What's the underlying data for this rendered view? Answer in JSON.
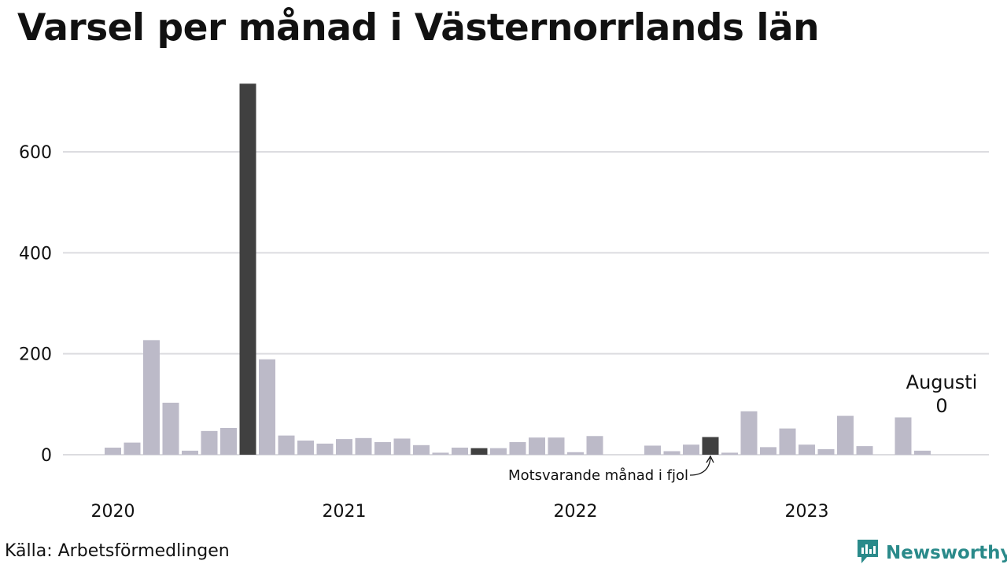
{
  "title": "Varsel per månad i Västernorrlands län",
  "source": "Källa: Arbetsförmedlingen",
  "brand": {
    "name": "Newsworthy",
    "icon": "newsworthy-logo-icon",
    "color": "#2a8a8a"
  },
  "colors": {
    "bar": "#bcbac8",
    "highlight": "#404040",
    "grid": "#dcdce0"
  },
  "annotations": {
    "comparison": "Motsvarande månad i fjol",
    "latest_month": "Augusti",
    "latest_value": "0"
  },
  "chart_data": {
    "type": "bar",
    "title": "Varsel per månad i Västernorrlands län",
    "xlabel": "",
    "ylabel": "",
    "ylim": [
      0,
      735
    ],
    "yticks": [
      0,
      200,
      400,
      600
    ],
    "xticks": [
      {
        "label": "2020",
        "index": 0
      },
      {
        "label": "2021",
        "index": 12
      },
      {
        "label": "2022",
        "index": 24
      },
      {
        "label": "2023",
        "index": 36
      }
    ],
    "grid": true,
    "categories": [
      "2020-01",
      "2020-02",
      "2020-03",
      "2020-04",
      "2020-05",
      "2020-06",
      "2020-07",
      "2020-08",
      "2020-09",
      "2020-10",
      "2020-11",
      "2020-12",
      "2021-01",
      "2021-02",
      "2021-03",
      "2021-04",
      "2021-05",
      "2021-06",
      "2021-07",
      "2021-08",
      "2021-09",
      "2021-10",
      "2021-11",
      "2021-12",
      "2022-01",
      "2022-02",
      "2022-03",
      "2022-04",
      "2022-05",
      "2022-06",
      "2022-07",
      "2022-08",
      "2022-09",
      "2022-10",
      "2022-11",
      "2022-12",
      "2023-01",
      "2023-02",
      "2023-03",
      "2023-04",
      "2023-05",
      "2023-06",
      "2023-07",
      "2023-08"
    ],
    "values": [
      14,
      24,
      227,
      103,
      8,
      47,
      53,
      735,
      189,
      38,
      28,
      22,
      31,
      33,
      25,
      32,
      19,
      4,
      14,
      13,
      13,
      25,
      34,
      34,
      5,
      37,
      0,
      0,
      18,
      7,
      20,
      35,
      4,
      86,
      15,
      52,
      20,
      11,
      77,
      17,
      0,
      74,
      8,
      0
    ],
    "highlight": [
      "2020-08",
      "2021-08",
      "2022-08"
    ]
  }
}
